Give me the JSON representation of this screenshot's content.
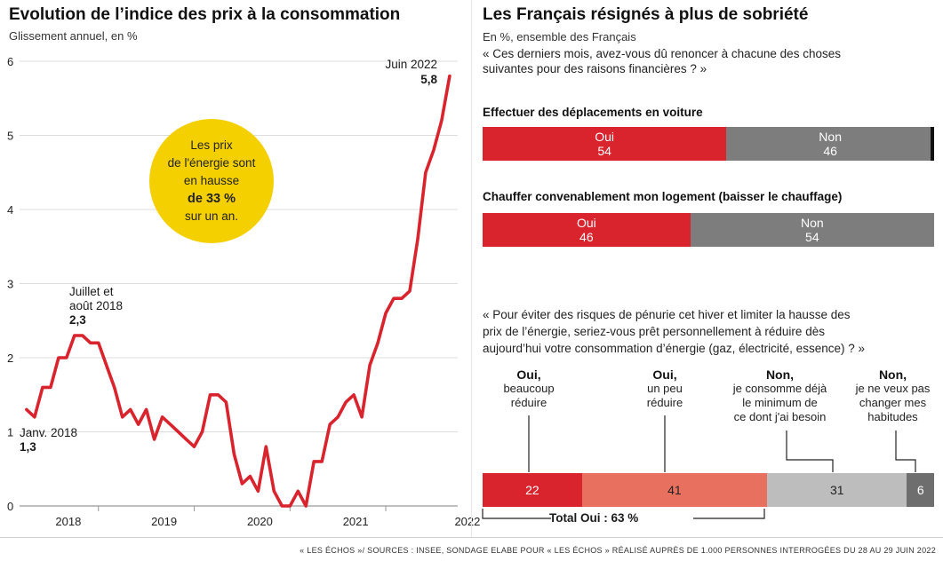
{
  "left": {
    "title": "Evolution de l’indice des prix à la consommation",
    "subtitle": "Glissement annuel, en %",
    "bubble": {
      "line1": "Les prix",
      "line2": "de l'énergie sont",
      "line3": "en hausse",
      "line4": "de 33 %",
      "line5": "sur un an.",
      "color": "#f5d000"
    },
    "annotations": {
      "start_label": "Janv. 2018",
      "start_value": "1,3",
      "peak_label_1": "Juillet et",
      "peak_label_2": "août 2018",
      "peak_value": "2,3",
      "end_label": "Juin 2022",
      "end_value": "5,8"
    }
  },
  "right": {
    "title": "Les Français résignés à plus de sobriété",
    "subtitle": "En %, ensemble des Français",
    "question1_line1": "« Ces derniers mois, avez-vous dû renoncer à chacune des choses",
    "question1_line2": "suivantes pour des raisons financières ? »",
    "bar1": {
      "label": "Effectuer des déplacements en voiture",
      "yes_label": "Oui",
      "yes": "54",
      "no_label": "Non",
      "no": "46"
    },
    "bar2": {
      "label": "Chauffer convenablement mon logement (baisser le chauffage)",
      "yes_label": "Oui",
      "yes": "46",
      "no_label": "Non",
      "no": "54"
    },
    "question2_line1": "« Pour éviter des risques de pénurie cet hiver et limiter la hausse des",
    "question2_line2": "prix de l’énergie, seriez-vous prêt personnellement à réduire dès",
    "question2_line3": "aujourd’hui votre consommation d’énergie (gaz, électricité, essence) ? »",
    "cats": [
      {
        "head": "Oui,",
        "d1": "beaucoup",
        "d2": "réduire",
        "d3": "",
        "value": "22"
      },
      {
        "head": "Oui,",
        "d1": "un peu",
        "d2": "réduire",
        "d3": "",
        "value": "41"
      },
      {
        "head": "Non,",
        "d1": "je consomme déjà",
        "d2": "le minimum de",
        "d3": "ce dont j'ai besoin",
        "value": "31"
      },
      {
        "head": "Non,",
        "d1": "je ne veux pas",
        "d2": "changer mes",
        "d3": "habitudes",
        "value": "6"
      }
    ],
    "total": "Total Oui : 63 %",
    "colors": {
      "red": "#d9232d",
      "salmon": "#e8705f",
      "grey": "#7d7d7d",
      "lightgrey": "#bdbdbd",
      "darkgrey": "#6e6e6e"
    }
  },
  "footer": "« LES ÉCHOS »/ SOURCES : INSEE, SONDAGE ELABE POUR « LES ÉCHOS » RÉALISÉ AUPRÈS DE 1.000 PERSONNES INTERROGÉES DU 28 AU 29 JUIN 2022",
  "chart_data": [
    {
      "type": "line",
      "title": "Evolution de l’indice des prix à la consommation",
      "subtitle": "Glissement annuel, en %",
      "ylim": [
        0,
        6
      ],
      "yticks": [
        "0",
        "1",
        "2",
        "3",
        "4",
        "5",
        "6"
      ],
      "xticks": [
        "2018",
        "2019",
        "2020",
        "2021",
        "2022"
      ],
      "grid": "horizontal",
      "series": [
        {
          "x": [
            "2018-01",
            "2018-02",
            "2018-03",
            "2018-04",
            "2018-05",
            "2018-06",
            "2018-07",
            "2018-08",
            "2018-09",
            "2018-10",
            "2018-11",
            "2018-12",
            "2019-01",
            "2019-02",
            "2019-03",
            "2019-04",
            "2019-05",
            "2019-06",
            "2019-07",
            "2019-08",
            "2019-09",
            "2019-10",
            "2019-11",
            "2019-12",
            "2020-01",
            "2020-02",
            "2020-03",
            "2020-04",
            "2020-05",
            "2020-06",
            "2020-07",
            "2020-08",
            "2020-09",
            "2020-10",
            "2020-11",
            "2020-12",
            "2021-01",
            "2021-02",
            "2021-03",
            "2021-04",
            "2021-05",
            "2021-06",
            "2021-07",
            "2021-08",
            "2021-09",
            "2021-10",
            "2021-11",
            "2021-12",
            "2022-01",
            "2022-02",
            "2022-03",
            "2022-04",
            "2022-05",
            "2022-06"
          ],
          "values": [
            1.3,
            1.2,
            1.6,
            1.6,
            2.0,
            2.0,
            2.3,
            2.3,
            2.2,
            2.2,
            1.9,
            1.6,
            1.2,
            1.3,
            1.1,
            1.3,
            0.9,
            1.2,
            1.1,
            1.0,
            0.9,
            0.8,
            1.0,
            1.5,
            1.5,
            1.4,
            0.7,
            0.3,
            0.4,
            0.2,
            0.8,
            0.2,
            0.0,
            0.0,
            0.2,
            0.0,
            0.6,
            0.6,
            1.1,
            1.2,
            1.4,
            1.5,
            1.2,
            1.9,
            2.2,
            2.6,
            2.8,
            2.8,
            2.9,
            3.6,
            4.5,
            4.8,
            5.2,
            5.8
          ]
        }
      ]
    },
    {
      "type": "bar",
      "stacked": true,
      "orientation": "horizontal",
      "categories": [
        "Effectuer des déplacements en voiture",
        "Chauffer convenablement mon logement (baisser le chauffage)"
      ],
      "series": [
        {
          "name": "Oui",
          "values": [
            54,
            46
          ]
        },
        {
          "name": "Non",
          "values": [
            46,
            54
          ]
        }
      ]
    },
    {
      "type": "bar",
      "stacked": true,
      "orientation": "horizontal",
      "categories": [
        "Oui, beaucoup réduire",
        "Oui, un peu réduire",
        "Non, je consomme déjà le minimum de ce dont j'ai besoin",
        "Non, je ne veux pas changer mes habitudes"
      ],
      "values": [
        22,
        41,
        31,
        6
      ],
      "annotation": "Total Oui : 63 %"
    }
  ]
}
